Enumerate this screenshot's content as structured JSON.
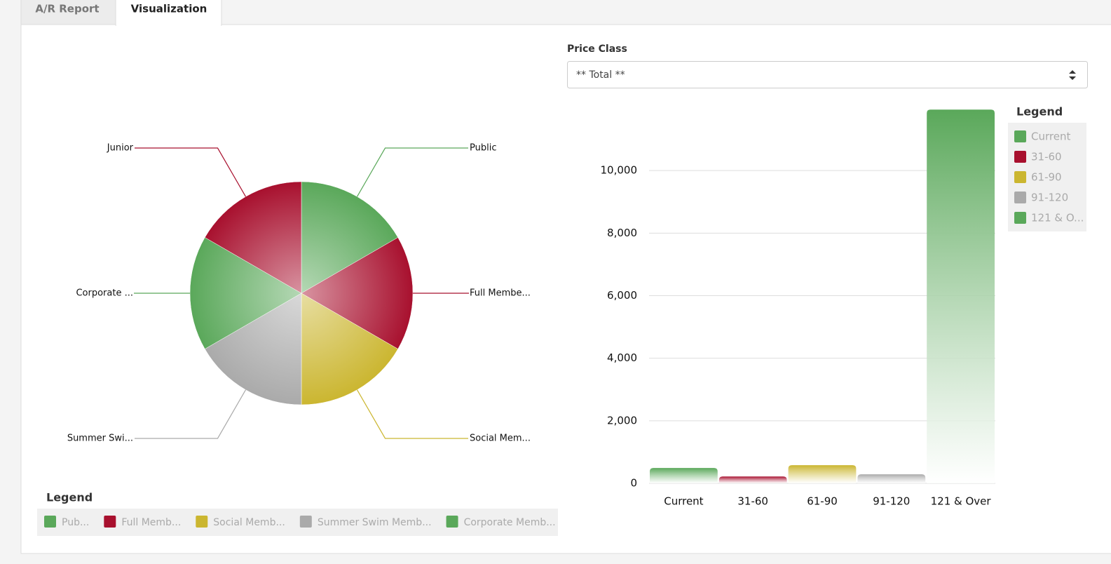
{
  "tabs": [
    "A/R Report",
    "Visualization"
  ],
  "filter": {
    "label": "Price Class",
    "value": "** Total **"
  },
  "chart_data": [
    {
      "type": "pie",
      "categories": [
        "Public",
        "Full Membe...",
        "Social Mem...",
        "Summer Swi...",
        "Corporate ...",
        "Junior"
      ],
      "values": [
        16.7,
        16.7,
        16.7,
        16.7,
        16.7,
        16.7
      ],
      "colors": [
        "#5aa85a",
        "#a8102e",
        "#cbb630",
        "#aaaaaa",
        "#5aa85a",
        "#a8102e"
      ],
      "legend_title": "Legend",
      "legend_labels": [
        "Pub...",
        "Full Memb...",
        "Social Memb...",
        "Summer Swim Memb...",
        "Corporate Memb...",
        null
      ]
    },
    {
      "type": "bar",
      "categories": [
        "Current",
        "31-60",
        "61-90",
        "91-120",
        "121 & Over"
      ],
      "values": [
        490,
        220,
        580,
        290,
        11950
      ],
      "colors": [
        "#5aa85a",
        "#a8102e",
        "#cbb630",
        "#aaaaaa",
        "#5aa85a"
      ],
      "ylim": [
        0,
        12000
      ],
      "yticks": [
        0,
        {
          "value": 2000,
          "label": "2,000"
        },
        {
          "value": 4000,
          "label": "4,000"
        },
        {
          "value": 6000,
          "label": "6,000"
        },
        {
          "value": 8000,
          "label": "8,000"
        },
        {
          "value": 10000,
          "label": "10,000"
        }
      ],
      "grid": true,
      "legend_title": "Legend",
      "legend_labels": [
        "Current",
        "31-60",
        "61-90",
        "91-120",
        "121 & O..."
      ]
    }
  ]
}
